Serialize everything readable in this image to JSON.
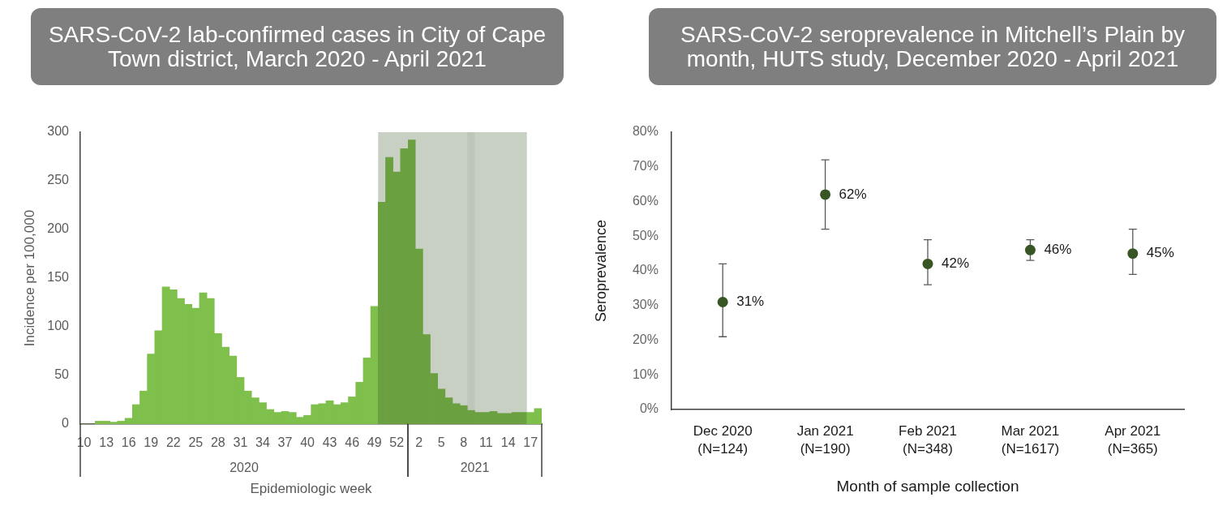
{
  "chart_data": [
    {
      "type": "bar",
      "title": "SARS-CoV-2 lab-confirmed cases in City of Cape Town district, March 2020 - April 2021",
      "xlabel": "2020",
      "ylabel": "Incidence per 100,000",
      "annotations": [
        "Epidemiologic week"
      ],
      "x": [
        10,
        11,
        12,
        13,
        14,
        15,
        16,
        17,
        18,
        19,
        20,
        21,
        22,
        23,
        24,
        25,
        26,
        27,
        28,
        29,
        30,
        31,
        32,
        33,
        34,
        35,
        36,
        37,
        38,
        39,
        40,
        41,
        42,
        43,
        44,
        45,
        46,
        47,
        48,
        49,
        50,
        51,
        52,
        53
      ],
      "values": [
        0,
        0,
        3,
        3,
        2,
        3,
        6,
        20,
        34,
        72,
        96,
        141,
        138,
        129,
        123,
        119,
        135,
        129,
        93,
        79,
        70,
        48,
        34,
        27,
        22,
        15,
        12,
        13,
        12,
        7,
        9,
        20,
        21,
        24,
        20,
        22,
        28,
        43,
        68,
        121,
        228,
        274,
        259,
        283
      ],
      "colors": [
        "#7fbf4c",
        "#7fbf4c",
        "#7fbf4c",
        "#7fbf4c",
        "#7fbf4c",
        "#7fbf4c",
        "#7fbf4c",
        "#7fbf4c",
        "#7fbf4c",
        "#7fbf4c",
        "#7fbf4c",
        "#7fbf4c",
        "#7fbf4c",
        "#7fbf4c",
        "#7fbf4c",
        "#7fbf4c",
        "#7fbf4c",
        "#7fbf4c",
        "#7fbf4c",
        "#7fbf4c",
        "#7fbf4c",
        "#7fbf4c",
        "#7fbf4c",
        "#7fbf4c",
        "#7fbf4c",
        "#7fbf4c",
        "#7fbf4c",
        "#7fbf4c",
        "#7fbf4c",
        "#7fbf4c",
        "#7fbf4c",
        "#7fbf4c",
        "#7fbf4c",
        "#7fbf4c",
        "#7fbf4c",
        "#7fbf4c",
        "#7fbf4c",
        "#7fbf4c",
        "#7fbf4c",
        "#7fbf4c",
        "#6aa040",
        "#6aa040",
        "#6aa040",
        "#6aa040"
      ],
      "xlim": [
        9.5,
        53.5
      ],
      "xticks": [
        10,
        13,
        16,
        19,
        22,
        25,
        28,
        31,
        34,
        37,
        40,
        43,
        46,
        49,
        52
      ],
      "ylim": [
        0,
        300
      ],
      "yticks": [
        0,
        50,
        100,
        150,
        200,
        250,
        300
      ],
      "bands": [
        {
          "axis": "x",
          "from": 49.5,
          "to": 53.5,
          "color": "#c8d0c4"
        }
      ]
    },
    {
      "type": "bar",
      "xlabel": "2021",
      "x": [
        1,
        2,
        3,
        4,
        5,
        6,
        7,
        8,
        9,
        10,
        11,
        12,
        13,
        14,
        15,
        16,
        17,
        18
      ],
      "values": [
        292,
        180,
        92,
        52,
        36,
        27,
        21,
        19,
        14,
        12,
        12,
        13,
        11,
        11,
        12,
        12,
        12,
        16
      ],
      "colors": [
        "#6aa040",
        "#6aa040",
        "#6aa040",
        "#6aa040",
        "#6aa040",
        "#6aa040",
        "#6aa040",
        "#6aa040",
        "#6aa040",
        "#6aa040",
        "#6aa040",
        "#6aa040",
        "#6aa040",
        "#6aa040",
        "#6aa040",
        "#6aa040",
        "#7fbf4c",
        "#7fbf4c"
      ],
      "xlim": [
        0.5,
        18.5
      ],
      "xticks": [
        2,
        5,
        8,
        11,
        14,
        17
      ],
      "ylim": [
        0,
        300
      ],
      "tick_labels": "x",
      "bands": [
        {
          "axis": "x",
          "from": 0.5,
          "to": 16.5,
          "color": "#c8d0c4"
        },
        {
          "axis": "x",
          "from": 8.5,
          "to": 9.5,
          "color": "#bdc6b9"
        }
      ]
    },
    {
      "type": "scatter",
      "title": "SARS-CoV-2 seroprevalence in Mitchell’s Plain by month, HUTS study, December 2020 - April 2021",
      "xlabel": "Month of sample collection",
      "ylabel": "Seroprevalence",
      "categories": [
        "Dec 2020\n(N=124)",
        "Jan 2021\n(N=190)",
        "Feb 2021\n(N=348)",
        "Mar 2021\n(N=1617)",
        "Apr 2021\n(N=365)"
      ],
      "values": [
        31,
        62,
        42,
        46,
        45
      ],
      "errors": [
        [
          21,
          42
        ],
        [
          52,
          72
        ],
        [
          36,
          49
        ],
        [
          43,
          49
        ],
        [
          39,
          52
        ]
      ],
      "value_labels": [
        "31%",
        "62%",
        "42%",
        "46%",
        "45%"
      ],
      "color": "#375623",
      "marker": "circle",
      "ylim": [
        0,
        80
      ],
      "yticks": [
        {
          "value": 0,
          "label": "0%"
        },
        {
          "value": 10,
          "label": "10%"
        },
        {
          "value": 20,
          "label": "20%"
        },
        {
          "value": 30,
          "label": "30%"
        },
        {
          "value": 40,
          "label": "40%"
        },
        {
          "value": 50,
          "label": "50%"
        },
        {
          "value": 60,
          "label": "60%"
        },
        {
          "value": 70,
          "label": "70%"
        },
        {
          "value": 80,
          "label": "80%"
        }
      ]
    }
  ]
}
